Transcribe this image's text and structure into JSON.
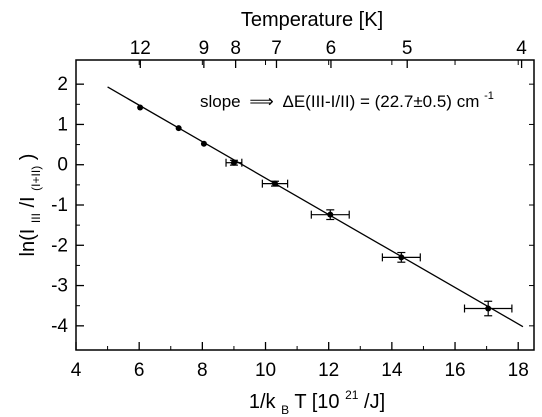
{
  "chart_data": {
    "type": "scatter",
    "top_axis_title": "Temperature [K]",
    "top_ticks": [
      "12",
      "9",
      "8",
      "7",
      "6",
      "5",
      "4"
    ],
    "top_tick_values": [
      12,
      9,
      8,
      7,
      6,
      5,
      4
    ],
    "xlabel": {
      "main": "1/k",
      "sub": "B",
      "after": "T [10",
      "sup": "21",
      "end": "/J]"
    },
    "ylabel": {
      "main": "ln(I",
      "sub1": "III",
      "mid": "/I",
      "sub2": "(I+II)",
      "end": ")"
    },
    "xlim": [
      4,
      18.5
    ],
    "ylim": [
      -4.6,
      2.6
    ],
    "x_ticks": [
      "4",
      "6",
      "8",
      "10",
      "12",
      "14",
      "16",
      "18"
    ],
    "y_ticks": [
      "-4",
      "-3",
      "-2",
      "-1",
      "0",
      "1",
      "2"
    ],
    "annotation": {
      "pre": "slope",
      "arrow": "⟹",
      "main": "ΔE(III-I/II) = (22.7±0.5) cm",
      "sup": "-1"
    },
    "points": [
      {
        "x": 6.03,
        "y": 1.42,
        "xerr": 0,
        "yerr": 0
      },
      {
        "x": 7.25,
        "y": 0.91,
        "xerr": 0,
        "yerr": 0
      },
      {
        "x": 8.05,
        "y": 0.52,
        "xerr": 0,
        "yerr": 0
      },
      {
        "x": 9.0,
        "y": 0.05,
        "xerr": 0.25,
        "yerr": 0.06
      },
      {
        "x": 10.3,
        "y": -0.47,
        "xerr": 0.4,
        "yerr": 0.06
      },
      {
        "x": 12.05,
        "y": -1.24,
        "xerr": 0.6,
        "yerr": 0.12
      },
      {
        "x": 14.3,
        "y": -2.3,
        "xerr": 0.6,
        "yerr": 0.12
      },
      {
        "x": 17.05,
        "y": -3.57,
        "xerr": 0.75,
        "yerr": 0.18
      }
    ],
    "fit_line": {
      "x": [
        5.0,
        18.15
      ],
      "y": [
        1.93,
        -4.02
      ]
    }
  }
}
